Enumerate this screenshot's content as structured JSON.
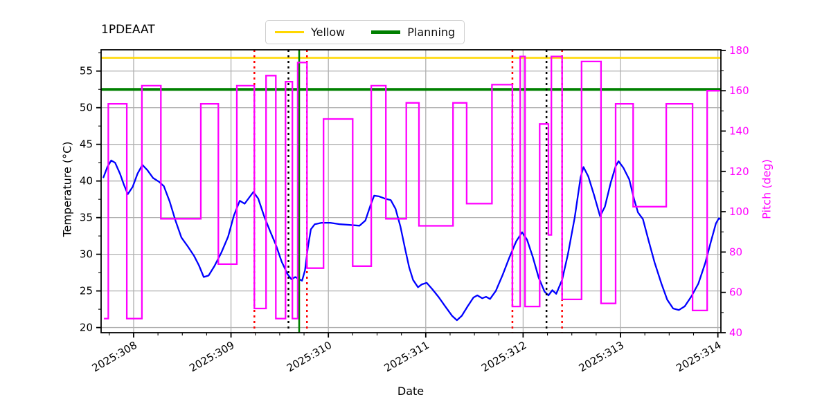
{
  "title": "1PDEAAT",
  "legend": {
    "items": [
      {
        "label": "Yellow",
        "color": "#ffd700",
        "line_width": 3
      },
      {
        "label": "Planning",
        "color": "#008000",
        "line_width": 4.5
      }
    ]
  },
  "axes": {
    "x": {
      "label": "Date",
      "tick_labels": [
        "2025:308",
        "2025:309",
        "2025:310",
        "2025:311",
        "2025:312",
        "2025:313",
        "2025:314"
      ],
      "tick_values": [
        308,
        309,
        310,
        311,
        312,
        313,
        314
      ],
      "lim": [
        307.666,
        314.031
      ],
      "minor_step": 0.25
    },
    "y_left": {
      "label": "Temperature (°C)",
      "tick_values": [
        20,
        25,
        30,
        35,
        40,
        45,
        50,
        55
      ],
      "lim": [
        19.3,
        57.9
      ],
      "minor_step": 2.5,
      "text_color": "#000000"
    },
    "y_right": {
      "label": "Pitch (deg)",
      "tick_values": [
        40,
        60,
        80,
        100,
        120,
        140,
        160,
        180
      ],
      "lim": [
        40,
        180.3
      ],
      "minor_step": 10,
      "text_color": "#ff00ff"
    }
  },
  "colors": {
    "temperature": "#0000ff",
    "pitch": "#ff00ff",
    "yellow_limit": "#ffd700",
    "planning_limit": "#008000",
    "red_event": "#ff0000",
    "black_event": "#000000",
    "green_event": "#008000",
    "grid": "#b0b0b0",
    "spine": "#000000"
  },
  "chart_data": {
    "type": "line",
    "title": "1PDEAAT",
    "xlabel": "Date",
    "ylabel_left": "Temperature (°C)",
    "ylabel_right": "Pitch (deg)",
    "x_unit": "year:day_of_year",
    "grid": true,
    "legend_position": "top-center",
    "xlim": [
      307.666,
      314.031
    ],
    "ylim_left": [
      19.3,
      57.9
    ],
    "ylim_right": [
      40,
      180.3
    ],
    "series": [
      {
        "name": "temperature",
        "axis": "left",
        "color": "#0000ff",
        "line_width": 2.3,
        "points": [
          [
            307.69,
            40.5
          ],
          [
            307.73,
            41.9
          ],
          [
            307.77,
            42.8
          ],
          [
            307.81,
            42.5
          ],
          [
            307.86,
            41.0
          ],
          [
            307.9,
            39.5
          ],
          [
            307.94,
            38.2
          ],
          [
            307.99,
            39.2
          ],
          [
            308.04,
            41.0
          ],
          [
            308.09,
            42.2
          ],
          [
            308.14,
            41.5
          ],
          [
            308.2,
            40.4
          ],
          [
            308.26,
            39.9
          ],
          [
            308.31,
            39.3
          ],
          [
            308.37,
            37.2
          ],
          [
            308.43,
            34.6
          ],
          [
            308.49,
            32.3
          ],
          [
            308.56,
            31.0
          ],
          [
            308.62,
            29.8
          ],
          [
            308.67,
            28.5
          ],
          [
            308.72,
            26.9
          ],
          [
            308.77,
            27.1
          ],
          [
            308.83,
            28.4
          ],
          [
            308.9,
            30.2
          ],
          [
            308.97,
            32.4
          ],
          [
            309.03,
            35.3
          ],
          [
            309.09,
            37.3
          ],
          [
            309.14,
            36.9
          ],
          [
            309.19,
            37.8
          ],
          [
            309.23,
            38.5
          ],
          [
            309.28,
            37.6
          ],
          [
            309.34,
            35.2
          ],
          [
            309.4,
            33.2
          ],
          [
            309.46,
            31.3
          ],
          [
            309.52,
            29.0
          ],
          [
            309.58,
            27.3
          ],
          [
            309.62,
            26.6
          ],
          [
            309.66,
            26.9
          ],
          [
            309.7,
            26.6
          ],
          [
            309.73,
            26.4
          ],
          [
            309.76,
            27.8
          ],
          [
            309.79,
            31.0
          ],
          [
            309.82,
            33.4
          ],
          [
            309.86,
            34.1
          ],
          [
            309.93,
            34.3
          ],
          [
            310.02,
            34.3
          ],
          [
            310.12,
            34.1
          ],
          [
            310.22,
            34.0
          ],
          [
            310.32,
            33.9
          ],
          [
            310.38,
            34.6
          ],
          [
            310.43,
            36.6
          ],
          [
            310.47,
            38.0
          ],
          [
            310.52,
            37.9
          ],
          [
            310.58,
            37.6
          ],
          [
            310.64,
            37.4
          ],
          [
            310.69,
            36.2
          ],
          [
            310.74,
            33.8
          ],
          [
            310.79,
            30.6
          ],
          [
            310.83,
            28.2
          ],
          [
            310.87,
            26.5
          ],
          [
            310.92,
            25.5
          ],
          [
            310.96,
            25.9
          ],
          [
            311.01,
            26.1
          ],
          [
            311.07,
            25.2
          ],
          [
            311.13,
            24.2
          ],
          [
            311.2,
            22.9
          ],
          [
            311.27,
            21.6
          ],
          [
            311.32,
            21.0
          ],
          [
            311.37,
            21.6
          ],
          [
            311.43,
            22.9
          ],
          [
            311.49,
            24.1
          ],
          [
            311.53,
            24.4
          ],
          [
            311.58,
            24.0
          ],
          [
            311.62,
            24.2
          ],
          [
            311.66,
            23.9
          ],
          [
            311.72,
            25.0
          ],
          [
            311.79,
            27.2
          ],
          [
            311.86,
            29.6
          ],
          [
            311.93,
            31.8
          ],
          [
            311.99,
            33.0
          ],
          [
            312.04,
            32.0
          ],
          [
            312.1,
            29.6
          ],
          [
            312.16,
            26.8
          ],
          [
            312.22,
            24.9
          ],
          [
            312.26,
            24.4
          ],
          [
            312.3,
            25.1
          ],
          [
            312.34,
            24.6
          ],
          [
            312.4,
            26.5
          ],
          [
            312.46,
            30.0
          ],
          [
            312.53,
            35.0
          ],
          [
            312.59,
            40.5
          ],
          [
            312.62,
            41.9
          ],
          [
            312.67,
            40.6
          ],
          [
            312.73,
            38.0
          ],
          [
            312.79,
            35.2
          ],
          [
            312.84,
            36.5
          ],
          [
            312.9,
            39.8
          ],
          [
            312.95,
            42.0
          ],
          [
            312.98,
            42.7
          ],
          [
            313.03,
            41.8
          ],
          [
            313.09,
            40.2
          ],
          [
            313.14,
            37.5
          ],
          [
            313.18,
            35.7
          ],
          [
            313.23,
            34.8
          ],
          [
            313.29,
            31.8
          ],
          [
            313.35,
            28.9
          ],
          [
            313.42,
            26.0
          ],
          [
            313.48,
            23.8
          ],
          [
            313.54,
            22.6
          ],
          [
            313.6,
            22.4
          ],
          [
            313.66,
            22.9
          ],
          [
            313.73,
            24.3
          ],
          [
            313.8,
            26.0
          ],
          [
            313.87,
            28.8
          ],
          [
            313.93,
            31.8
          ],
          [
            313.98,
            34.2
          ],
          [
            314.01,
            34.9
          ],
          [
            314.03,
            34.8
          ]
        ]
      },
      {
        "name": "pitch",
        "axis": "right",
        "color": "#ff00ff",
        "line_width": 2.3,
        "style": "steps",
        "segments": [
          [
            307.695,
            307.74,
            47
          ],
          [
            307.74,
            307.93,
            153.5
          ],
          [
            307.93,
            308.085,
            47
          ],
          [
            308.085,
            308.28,
            162.5
          ],
          [
            308.28,
            308.69,
            96.5
          ],
          [
            308.69,
            308.87,
            153.5
          ],
          [
            308.87,
            309.06,
            74
          ],
          [
            309.06,
            309.24,
            162.5
          ],
          [
            309.24,
            309.36,
            52
          ],
          [
            309.36,
            309.46,
            167.5
          ],
          [
            309.46,
            309.56,
            47
          ],
          [
            309.56,
            309.63,
            164.5
          ],
          [
            309.63,
            309.685,
            47
          ],
          [
            309.685,
            309.78,
            174
          ],
          [
            309.78,
            309.95,
            72
          ],
          [
            309.95,
            310.25,
            146
          ],
          [
            310.25,
            310.44,
            73
          ],
          [
            310.44,
            310.59,
            162.5
          ],
          [
            310.59,
            310.8,
            96.5
          ],
          [
            310.8,
            310.93,
            154
          ],
          [
            310.93,
            311.28,
            93
          ],
          [
            311.28,
            311.42,
            154
          ],
          [
            311.42,
            311.68,
            104
          ],
          [
            311.68,
            311.89,
            163
          ],
          [
            311.89,
            311.97,
            53
          ],
          [
            311.97,
            312.02,
            177
          ],
          [
            312.02,
            312.17,
            53
          ],
          [
            312.17,
            312.26,
            143.5
          ],
          [
            312.26,
            312.29,
            88.5
          ],
          [
            312.29,
            312.4,
            177
          ],
          [
            312.4,
            312.6,
            56.5
          ],
          [
            312.6,
            312.8,
            174.5
          ],
          [
            312.8,
            312.95,
            54.5
          ],
          [
            312.95,
            313.13,
            153.5
          ],
          [
            313.13,
            313.47,
            102.5
          ],
          [
            313.47,
            313.74,
            153.5
          ],
          [
            313.74,
            313.89,
            51
          ],
          [
            313.89,
            314.02,
            160
          ]
        ]
      }
    ],
    "reference_lines": [
      {
        "name": "Yellow",
        "orientation": "horizontal",
        "axis": "left",
        "value": 56.8,
        "color": "#ffd700",
        "line_style": "solid",
        "line_width": 2.5
      },
      {
        "name": "Planning",
        "orientation": "horizontal",
        "axis": "left",
        "value": 52.5,
        "color": "#008000",
        "line_style": "solid",
        "line_width": 4
      },
      {
        "name": "event-1",
        "orientation": "vertical",
        "value": 309.24,
        "color": "#ff0000",
        "line_style": "dotted",
        "line_width": 2.5
      },
      {
        "name": "event-2",
        "orientation": "vertical",
        "value": 309.59,
        "color": "#000000",
        "line_style": "dotted",
        "line_width": 2.5
      },
      {
        "name": "event-3",
        "orientation": "vertical",
        "value": 309.7,
        "color": "#008000",
        "line_style": "solid",
        "line_width": 2.5
      },
      {
        "name": "event-4",
        "orientation": "vertical",
        "value": 309.78,
        "color": "#ff0000",
        "line_style": "dotted",
        "line_width": 2.5
      },
      {
        "name": "event-5",
        "orientation": "vertical",
        "value": 311.89,
        "color": "#ff0000",
        "line_style": "dotted",
        "line_width": 2.5
      },
      {
        "name": "event-6",
        "orientation": "vertical",
        "value": 312.24,
        "color": "#000000",
        "line_style": "dotted",
        "line_width": 2.5
      },
      {
        "name": "event-7",
        "orientation": "vertical",
        "value": 312.4,
        "color": "#ff0000",
        "line_style": "dotted",
        "line_width": 2.5
      }
    ]
  }
}
